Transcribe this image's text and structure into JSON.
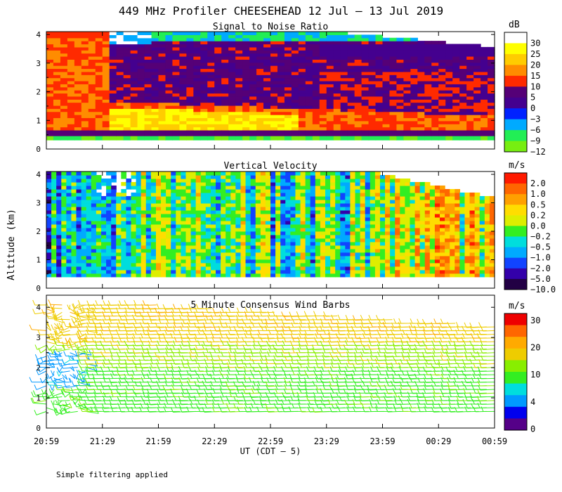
{
  "title": "449 MHz Profiler CHEESEHEAD 12 Jul – 13 Jul 2019",
  "footnote": "Simple filtering applied",
  "ylabel": "Altitude (km)",
  "xlabel": "UT  (CDT – 5)",
  "x_ticks": [
    "20:59",
    "21:29",
    "21:59",
    "22:29",
    "22:59",
    "23:29",
    "23:59",
    "00:29",
    "00:59"
  ],
  "chart_data": [
    {
      "type": "heatmap",
      "title": "Signal to Noise Ratio",
      "ylabel": "Altitude (km)",
      "ylim": [
        0,
        4.1
      ],
      "y_ticks": [
        "0",
        "1",
        "2",
        "3",
        "4"
      ],
      "colorbar": {
        "unit": "dB",
        "labels": [
          "30",
          "25",
          "20",
          "15",
          "10",
          "5",
          "0",
          "−3",
          "−6",
          "−9",
          "−12"
        ],
        "colors": [
          "#ffffff",
          "#ffff00",
          "#ffcc00",
          "#ff8c00",
          "#ff2a00",
          "#550077",
          "#44008f",
          "#0022ff",
          "#00aaff",
          "#22ee55",
          "#77ee11"
        ]
      }
    },
    {
      "type": "heatmap",
      "title": "Vertical Velocity",
      "ylabel": "Altitude (km)",
      "ylim": [
        0,
        4.1
      ],
      "y_ticks": [
        "0",
        "1",
        "2",
        "3",
        "4"
      ],
      "colorbar": {
        "unit": "m/s",
        "labels": [
          "2.0",
          "1.0",
          "0.5",
          "0.2",
          "0.0",
          "−0.2",
          "−0.5",
          "−1.0",
          "−2.0",
          "−5.0",
          "−10.0"
        ],
        "colors": [
          "#ff1a00",
          "#ff6600",
          "#ffa000",
          "#ffdd00",
          "#ddee00",
          "#33ee22",
          "#00dddd",
          "#00aaff",
          "#1144ff",
          "#3300aa",
          "#220044"
        ]
      }
    },
    {
      "type": "heatmap",
      "title": "5 Minute Consensus Wind Barbs",
      "ylabel": "Altitude (km)",
      "ylim": [
        0,
        4.4
      ],
      "y_ticks": [
        "0",
        "1",
        "2",
        "3",
        "4"
      ],
      "colorbar": {
        "unit": "m/s",
        "labels": [
          "30",
          "20",
          "10",
          "4",
          "0"
        ],
        "colors": [
          "#ee0000",
          "#ff6600",
          "#ffaa00",
          "#eecc00",
          "#88ee00",
          "#33ee22",
          "#00dddd",
          "#0099ff",
          "#0000ee",
          "#550088"
        ]
      }
    }
  ]
}
